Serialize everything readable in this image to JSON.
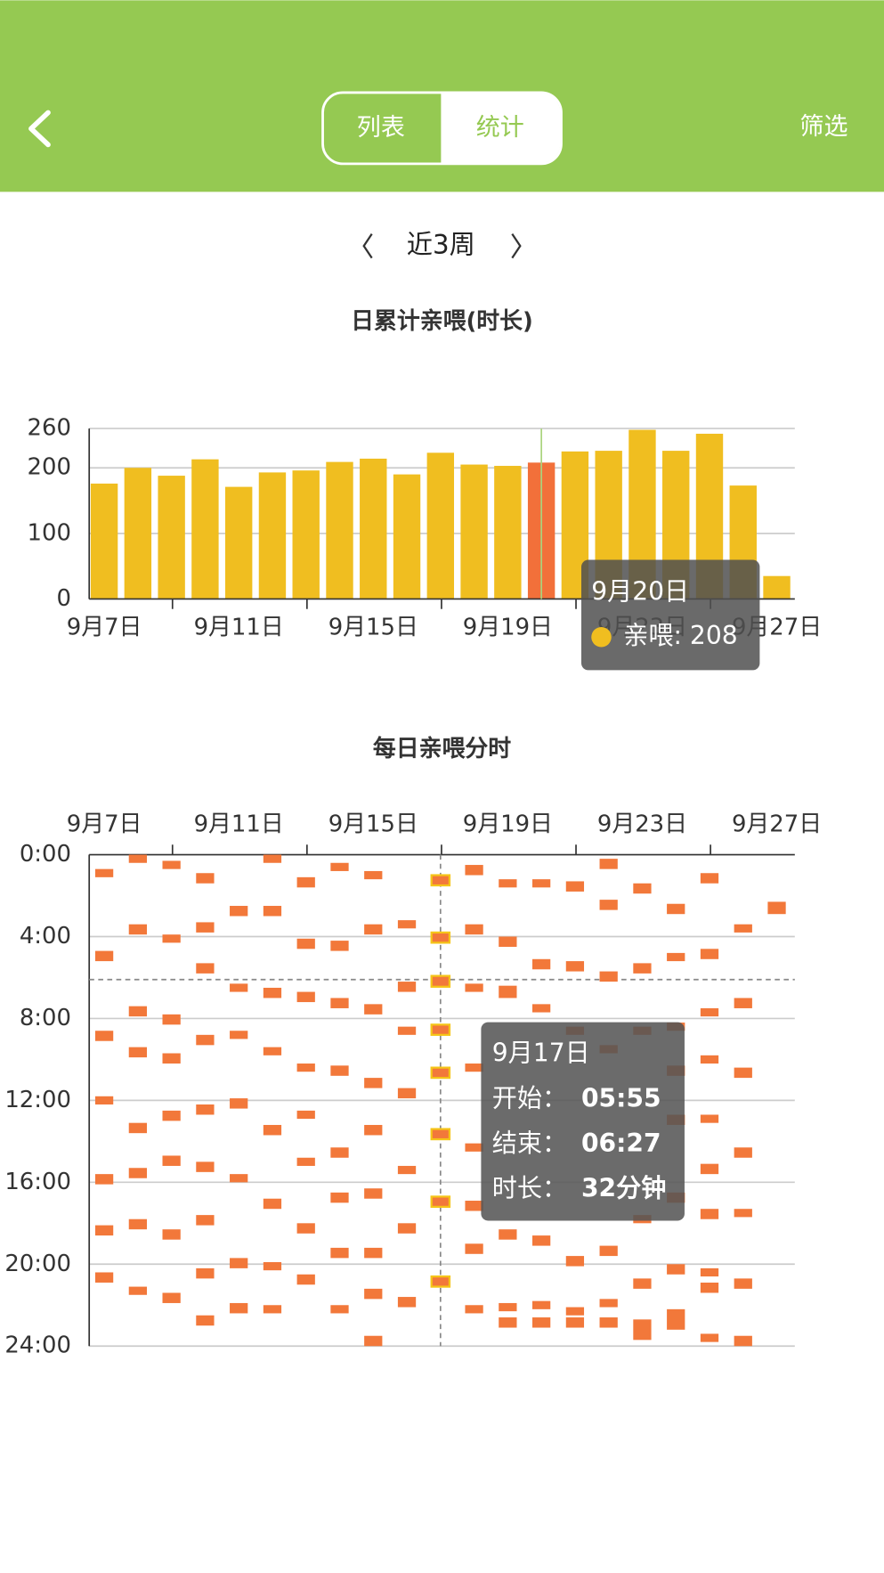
{
  "header": {
    "tabs": [
      "列表",
      "统计"
    ],
    "filter": "筛选"
  },
  "period": {
    "label": "近3周"
  },
  "chart_data": [
    {
      "type": "bar",
      "title": "日累计亲喂(时长)",
      "categories": [
        "9月7日",
        null,
        null,
        null,
        "9月11日",
        null,
        null,
        null,
        "9月15日",
        null,
        null,
        null,
        "9月19日",
        null,
        null,
        null,
        "9月23日",
        null,
        null,
        null,
        "9月27日"
      ],
      "values": [
        176,
        200,
        188,
        213,
        171,
        193,
        196,
        209,
        214,
        190,
        223,
        205,
        203,
        208,
        225,
        226,
        258,
        226,
        252,
        173,
        35
      ],
      "color": "#f0be20",
      "highlight_color": "#f2703a",
      "ylim": [
        0,
        260
      ],
      "yticks": [
        0,
        100,
        200,
        260
      ],
      "grid": true,
      "tooltip": {
        "index": 13,
        "title": "9月20日",
        "label": "亲喂: 208",
        "color": "#f0be20"
      }
    },
    {
      "type": "timeline",
      "title": "每日亲喂分时",
      "categories": [
        "9月7日",
        null,
        null,
        null,
        "9月11日",
        null,
        null,
        null,
        "9月15日",
        null,
        null,
        null,
        "9月19日",
        null,
        null,
        null,
        "9月23日",
        null,
        null,
        null,
        "9月27日"
      ],
      "color": "#f2783a",
      "highlight_stroke": "#f5c518",
      "ylim": [
        0,
        24
      ],
      "y_inverted": true,
      "yticks": [
        {
          "value": 0,
          "label": "0:00"
        },
        {
          "value": 4,
          "label": "4:00"
        },
        {
          "value": 8,
          "label": "8:00"
        },
        {
          "value": 12,
          "label": "12:00"
        },
        {
          "value": 16,
          "label": "16:00"
        },
        {
          "value": 20,
          "label": "20:00"
        },
        {
          "value": 24,
          "label": "24:00"
        }
      ],
      "grid": true,
      "crosshair_y": 6.1,
      "segments": [
        [
          [
            0.7,
            1.1
          ],
          [
            4.7,
            5.2
          ],
          [
            8.6,
            9.1
          ],
          [
            11.8,
            12.2
          ],
          [
            15.6,
            16.1
          ],
          [
            18.1,
            18.6
          ],
          [
            20.4,
            20.9
          ]
        ],
        [
          [
            0,
            0.4
          ],
          [
            3.4,
            3.9
          ],
          [
            7.4,
            7.9
          ],
          [
            9.4,
            9.9
          ],
          [
            13.1,
            13.6
          ],
          [
            15.3,
            15.8
          ],
          [
            17.8,
            18.3
          ],
          [
            21.1,
            21.5
          ]
        ],
        [
          [
            0.3,
            0.7
          ],
          [
            3.9,
            4.3
          ],
          [
            7.8,
            8.3
          ],
          [
            9.7,
            10.2
          ],
          [
            12.5,
            13
          ],
          [
            14.7,
            15.2
          ],
          [
            18.3,
            18.8
          ],
          [
            21.4,
            21.9
          ]
        ],
        [
          [
            0.9,
            1.4
          ],
          [
            3.3,
            3.8
          ],
          [
            5.3,
            5.8
          ],
          [
            8.8,
            9.3
          ],
          [
            12.2,
            12.7
          ],
          [
            15,
            15.5
          ],
          [
            17.6,
            18.1
          ],
          [
            20.2,
            20.7
          ],
          [
            22.5,
            23
          ]
        ],
        [
          [
            2.5,
            3
          ],
          [
            6.3,
            6.7
          ],
          [
            8.6,
            9
          ],
          [
            11.9,
            12.4
          ],
          [
            15.6,
            16
          ],
          [
            19.7,
            20.2
          ],
          [
            21.9,
            22.4
          ]
        ],
        [
          [
            0,
            0.4
          ],
          [
            2.5,
            3
          ],
          [
            6.5,
            7
          ],
          [
            9.4,
            9.8
          ],
          [
            13.2,
            13.7
          ],
          [
            16.8,
            17.3
          ],
          [
            19.9,
            20.3
          ],
          [
            22,
            22.4
          ]
        ],
        [
          [
            1.1,
            1.6
          ],
          [
            4.1,
            4.6
          ],
          [
            6.7,
            7.2
          ],
          [
            10.2,
            10.6
          ],
          [
            12.5,
            12.9
          ],
          [
            14.8,
            15.2
          ],
          [
            18,
            18.5
          ],
          [
            20.5,
            21
          ]
        ],
        [
          [
            0.4,
            0.8
          ],
          [
            4.2,
            4.7
          ],
          [
            7,
            7.5
          ],
          [
            10.3,
            10.8
          ],
          [
            14.3,
            14.8
          ],
          [
            16.5,
            17
          ],
          [
            19.2,
            19.7
          ],
          [
            22,
            22.4
          ]
        ],
        [
          [
            0.8,
            1.2
          ],
          [
            3.4,
            3.9
          ],
          [
            7.3,
            7.8
          ],
          [
            10.9,
            11.4
          ],
          [
            13.2,
            13.7
          ],
          [
            16.3,
            16.8
          ],
          [
            19.2,
            19.7
          ],
          [
            21.2,
            21.7
          ],
          [
            23.5,
            24
          ]
        ],
        [
          [
            3.2,
            3.6
          ],
          [
            6.2,
            6.7
          ],
          [
            8.4,
            8.8
          ],
          [
            11.4,
            11.9
          ],
          [
            15.2,
            15.6
          ],
          [
            18,
            18.5
          ],
          [
            21.6,
            22.1
          ]
        ],
        [
          [
            1,
            1.5
          ],
          [
            3.8,
            4.3
          ],
          [
            5.92,
            6.45
          ],
          [
            8.3,
            8.8
          ],
          [
            10.4,
            10.9
          ],
          [
            13.4,
            13.9
          ],
          [
            16.7,
            17.2
          ],
          [
            20.6,
            21.1
          ]
        ],
        [
          [
            0.5,
            1
          ],
          [
            3.4,
            3.9
          ],
          [
            6.3,
            6.7
          ],
          [
            10.2,
            10.6
          ],
          [
            14.1,
            14.5
          ],
          [
            16.9,
            17.4
          ],
          [
            19,
            19.5
          ],
          [
            22,
            22.4
          ]
        ],
        [
          [
            1.2,
            1.6
          ],
          [
            4,
            4.5
          ],
          [
            6.4,
            7
          ],
          [
            18.3,
            18.8
          ],
          [
            21.9,
            22.3
          ],
          [
            22.6,
            23.1
          ]
        ],
        [
          [
            1.2,
            1.6
          ],
          [
            5.1,
            5.6
          ],
          [
            7.3,
            7.7
          ],
          [
            18.6,
            19.1
          ],
          [
            21.8,
            22.2
          ],
          [
            22.6,
            23.1
          ]
        ],
        [
          [
            1.3,
            1.8
          ],
          [
            5.2,
            5.7
          ],
          [
            8.4,
            8.8
          ],
          [
            19.6,
            20.1
          ],
          [
            22.1,
            22.5
          ],
          [
            22.6,
            23.1
          ]
        ],
        [
          [
            0.2,
            0.7
          ],
          [
            2.2,
            2.7
          ],
          [
            5.7,
            6.2
          ],
          [
            9.3,
            9.7
          ],
          [
            19.1,
            19.6
          ],
          [
            21.7,
            22.1
          ],
          [
            22.6,
            23.1
          ]
        ],
        [
          [
            1.4,
            1.9
          ],
          [
            5.3,
            5.8
          ],
          [
            8.4,
            8.8
          ],
          [
            17.6,
            18
          ],
          [
            20.7,
            21.2
          ],
          [
            22.7,
            23.7
          ]
        ],
        [
          [
            2.4,
            2.9
          ],
          [
            4.8,
            5.2
          ],
          [
            8.2,
            8.6
          ],
          [
            10.3,
            10.8
          ],
          [
            12.7,
            13.2
          ],
          [
            16.5,
            17
          ],
          [
            20,
            20.5
          ],
          [
            22.2,
            23.2
          ]
        ],
        [
          [
            0.9,
            1.4
          ],
          [
            4.6,
            5.1
          ],
          [
            7.5,
            7.9
          ],
          [
            9.8,
            10.2
          ],
          [
            12.7,
            13.1
          ],
          [
            15.1,
            15.6
          ],
          [
            17.3,
            17.8
          ],
          [
            20.2,
            20.6
          ],
          [
            20.9,
            21.4
          ],
          [
            23.4,
            23.8
          ]
        ],
        [
          [
            3.4,
            3.8
          ],
          [
            7,
            7.5
          ],
          [
            10.4,
            10.9
          ],
          [
            14.3,
            14.8
          ],
          [
            17.3,
            17.7
          ],
          [
            20.7,
            21.2
          ],
          [
            23.5,
            24
          ]
        ],
        [
          [
            2.3,
            2.9
          ]
        ]
      ],
      "tooltip": {
        "index": 10,
        "title": "9月17日",
        "rows": [
          {
            "label": "开始：",
            "value": "05:55"
          },
          {
            "label": "结束：",
            "value": "06:27"
          },
          {
            "label": "时长：",
            "value": "32分钟"
          }
        ]
      }
    }
  ]
}
